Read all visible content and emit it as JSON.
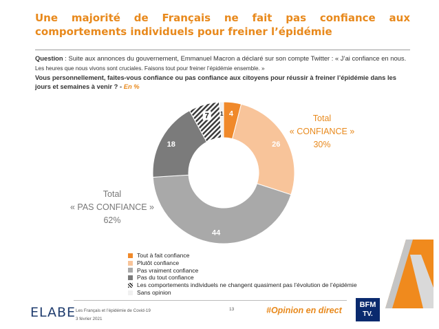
{
  "title": "Une majorité de Français ne fait pas confiance aux comportements individuels pour freiner l’épidémie",
  "question": {
    "label": "Question",
    "text": " : Suite aux annonces du gouvernement, Emmanuel Macron a déclaré sur son compte Twitter : « J’ai confiance en nous.",
    "text_small": " Les heures que nous vivons sont cruciales. Faisons tout pour freiner l’épidémie ensemble. »",
    "sub": "Vous personnellement, faites-vous confiance ou pas confiance aux citoyens pour réussir à freiner l’épidémie dans les jours et semaines à venir ? - ",
    "sub_pct": "En %"
  },
  "totals": {
    "confiance": [
      "Total",
      "« CONFIANCE »",
      "30%"
    ],
    "pas_confiance": [
      "Total",
      "« PAS CONFIANCE »",
      "62%"
    ]
  },
  "chart_data": {
    "type": "pie",
    "unit": "%",
    "series": [
      {
        "name": "Tout à fait confiance",
        "value": 4,
        "color": "#f0892a"
      },
      {
        "name": "Plutôt confiance",
        "value": 26,
        "color": "#f8c49a"
      },
      {
        "name": "Pas vraiment confiance",
        "value": 44,
        "color": "#a9a9a9"
      },
      {
        "name": "Pas du tout confiance",
        "value": 18,
        "color": "#7b7b7b"
      },
      {
        "name": "Les comportements individuels ne changent quasiment pas l’évolution de l’épidémie",
        "value": 7,
        "color": "#4a4a4a",
        "pattern": "hatch"
      },
      {
        "name": "Sans opinion",
        "value": 1,
        "color": "#f0f0f0"
      }
    ]
  },
  "footer": {
    "logo": "ELABE",
    "source": "Les Français et l’épidémie de Covid-19",
    "date": "3 février 2021",
    "page": "13",
    "hashtag": "#Opinion en direct",
    "bfm": "BFM",
    "tv": "TV."
  }
}
